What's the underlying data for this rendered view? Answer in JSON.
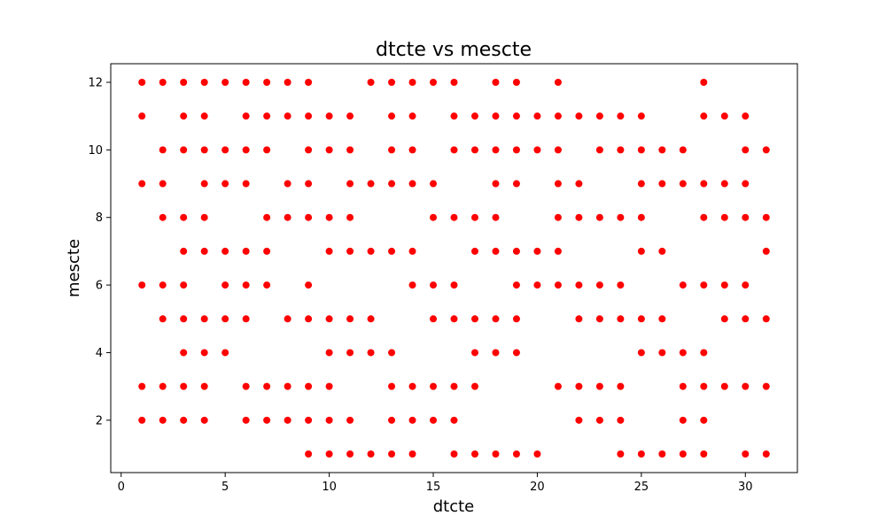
{
  "chart_data": {
    "type": "scatter",
    "title": "dtcte vs mescte",
    "xlabel": "dtcte",
    "ylabel": "mescte",
    "xlim": [
      -0.5,
      32.5
    ],
    "ylim": [
      0.45,
      12.55
    ],
    "xticks": [
      0,
      5,
      10,
      15,
      20,
      25,
      30
    ],
    "yticks": [
      2,
      4,
      6,
      8,
      10,
      12
    ],
    "grid": false,
    "marker_color": "#ff0000",
    "rows": [
      {
        "y": 12,
        "x": [
          1,
          2,
          3,
          4,
          5,
          6,
          7,
          8,
          9,
          12,
          13,
          14,
          15,
          16,
          18,
          19,
          21,
          28
        ]
      },
      {
        "y": 11,
        "x": [
          1,
          3,
          4,
          6,
          7,
          8,
          9,
          10,
          11,
          13,
          14,
          16,
          17,
          18,
          19,
          20,
          21,
          22,
          23,
          24,
          25,
          28,
          29,
          30
        ]
      },
      {
        "y": 10,
        "x": [
          2,
          3,
          4,
          5,
          6,
          7,
          9,
          10,
          11,
          13,
          14,
          16,
          17,
          18,
          19,
          20,
          21,
          23,
          24,
          25,
          26,
          27,
          30,
          31
        ]
      },
      {
        "y": 9,
        "x": [
          1,
          2,
          4,
          5,
          6,
          8,
          9,
          11,
          12,
          13,
          14,
          15,
          18,
          19,
          21,
          22,
          25,
          26,
          27,
          28,
          29,
          30
        ]
      },
      {
        "y": 8,
        "x": [
          2,
          3,
          4,
          7,
          8,
          9,
          10,
          11,
          15,
          16,
          17,
          18,
          21,
          22,
          23,
          24,
          25,
          28,
          29,
          30,
          31
        ]
      },
      {
        "y": 7,
        "x": [
          3,
          4,
          5,
          6,
          7,
          10,
          11,
          12,
          13,
          14,
          17,
          18,
          19,
          20,
          21,
          25,
          26,
          31
        ]
      },
      {
        "y": 6,
        "x": [
          1,
          2,
          3,
          5,
          6,
          7,
          9,
          14,
          15,
          16,
          19,
          20,
          21,
          22,
          23,
          24,
          27,
          28,
          29,
          30
        ]
      },
      {
        "y": 5,
        "x": [
          2,
          3,
          4,
          5,
          6,
          8,
          9,
          10,
          11,
          12,
          15,
          16,
          17,
          18,
          19,
          22,
          23,
          24,
          25,
          26,
          29,
          30,
          31
        ]
      },
      {
        "y": 4,
        "x": [
          3,
          4,
          5,
          10,
          11,
          12,
          13,
          17,
          18,
          19,
          25,
          26,
          27,
          28
        ]
      },
      {
        "y": 3,
        "x": [
          1,
          2,
          3,
          4,
          6,
          7,
          8,
          9,
          10,
          13,
          14,
          15,
          16,
          17,
          21,
          22,
          23,
          24,
          27,
          28,
          29,
          30,
          31
        ]
      },
      {
        "y": 2,
        "x": [
          1,
          2,
          3,
          4,
          6,
          7,
          8,
          9,
          10,
          11,
          13,
          14,
          15,
          16,
          22,
          23,
          24,
          27,
          28
        ]
      },
      {
        "y": 1,
        "x": [
          9,
          10,
          11,
          12,
          13,
          14,
          16,
          17,
          18,
          19,
          20,
          24,
          25,
          26,
          27,
          28,
          30,
          31
        ]
      }
    ]
  }
}
